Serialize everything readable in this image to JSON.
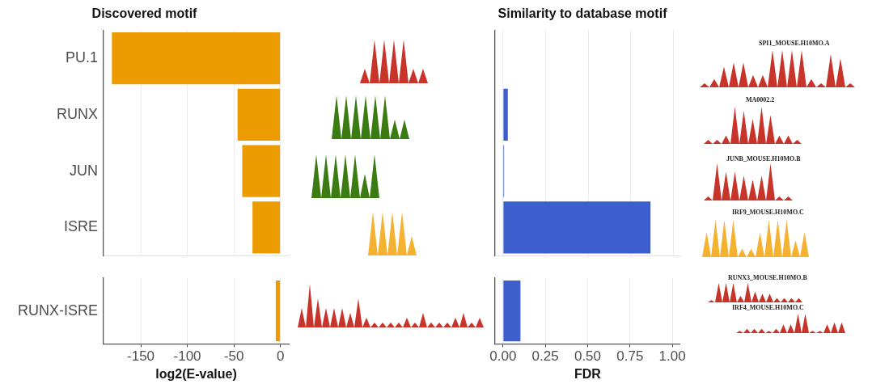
{
  "chart_data": [
    {
      "type": "bar",
      "orientation": "horizontal",
      "title": "Discovered motif",
      "categories": [
        "PU.1",
        "RUNX",
        "JUN",
        "ISRE"
      ],
      "values": [
        -181,
        -46,
        -41,
        -30
      ],
      "color": "#ec9c00",
      "xlim": [
        -190,
        9
      ],
      "xticks": [
        -150,
        -100,
        -50,
        0
      ],
      "grid": "x",
      "tick_labels": "y"
    },
    {
      "type": "bar",
      "orientation": "horizontal",
      "xlabel": "log2(E-value)",
      "categories": [
        "RUNX-ISRE"
      ],
      "values": [
        -5
      ],
      "color": "#ec9c00",
      "xlim": [
        -190,
        9
      ],
      "xticks": [
        -150,
        -100,
        -50,
        0
      ],
      "grid": "x"
    },
    {
      "type": "bar",
      "orientation": "horizontal",
      "title": "Similarity to database motif",
      "categories": [
        null,
        null,
        null,
        null
      ],
      "values": [
        0,
        0.028,
        0.006,
        0.867
      ],
      "color": "#3c5fcd",
      "xlim": [
        -0.047,
        1.047
      ],
      "xticks": [
        0,
        0.25,
        0.5,
        0.75,
        1
      ],
      "grid": "x",
      "tick_labels": false,
      "annotations": [
        "SPI1_MOUSE.H10MO.A",
        "MA0002.2",
        "JUNB_MOUSE.H10MO.B",
        "IRF9_MOUSE.H10MO.C"
      ]
    },
    {
      "type": "bar",
      "orientation": "horizontal",
      "xlabel": "FDR",
      "categories": [
        null
      ],
      "values": [
        0.103
      ],
      "color": "#3c5fcd",
      "xlim": [
        -0.047,
        1.047
      ],
      "xticks": [
        {
          "value": 0,
          "label": "0.00"
        },
        {
          "value": 0.25,
          "label": "0.25"
        },
        {
          "value": 0.5,
          "label": "0.50"
        },
        {
          "value": 0.75,
          "label": "0.75"
        },
        {
          "value": 1,
          "label": "1.00"
        }
      ],
      "grid": "x",
      "tick_labels": "x",
      "annotations": [
        "RUNX3_MOUSE.H10MO.B",
        "IRF4_MOUSE.H10MO.C"
      ]
    }
  ]
}
